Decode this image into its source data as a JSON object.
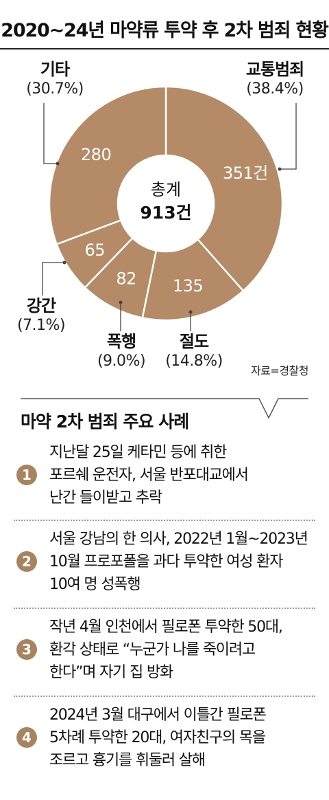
{
  "header": {
    "title": "2020~24년 마약류 투약 후 2차 범죄 현황"
  },
  "chart_data": {
    "type": "pie",
    "variant": "donut",
    "center_label": "총계",
    "center_value": "913건",
    "slices": [
      {
        "name": "교통범죄",
        "value": 351,
        "value_label": "351건",
        "percent_label": "(38.4%)"
      },
      {
        "name": "절도",
        "value": 135,
        "value_label": "135",
        "percent_label": "(14.8%)"
      },
      {
        "name": "폭행",
        "value": 82,
        "value_label": "82",
        "percent_label": "(9.0%)"
      },
      {
        "name": "강간",
        "value": 65,
        "value_label": "65",
        "percent_label": "(7.1%)"
      },
      {
        "name": "기타",
        "value": 280,
        "value_label": "280",
        "percent_label": "(30.7%)"
      }
    ],
    "colors": {
      "slice": "#b48b66",
      "divider": "#ffffff",
      "leader": "#444444"
    }
  },
  "source": "자료=경찰청",
  "cases": {
    "title": "마약 2차 범죄 주요 사례",
    "items": [
      {
        "num": "1",
        "lines": [
          "지난달 25일 케타민 등에 취한",
          "포르쉐 운전자, 서울 반포대교에서",
          "난간 들이받고 추락"
        ]
      },
      {
        "num": "2",
        "lines": [
          "서울 강남의 한 의사, 2022년 1월~2023년",
          "10월 프로포폴을 과다 투약한 여성 환자",
          "10여 명 성폭행"
        ]
      },
      {
        "num": "3",
        "lines": [
          "작년 4월 인천에서 필로폰 투약한 50대,",
          "환각 상태로 “누군가 나를 죽이려고",
          "한다”며 자기 집 방화"
        ]
      },
      {
        "num": "4",
        "lines": [
          "2024년 3월 대구에서 이틀간 필로폰",
          "5차례 투약한 20대, 여자친구의 목을",
          "조르고 흉기를 휘둘러 살해"
        ]
      }
    ],
    "badge_color": "#a8835f"
  }
}
